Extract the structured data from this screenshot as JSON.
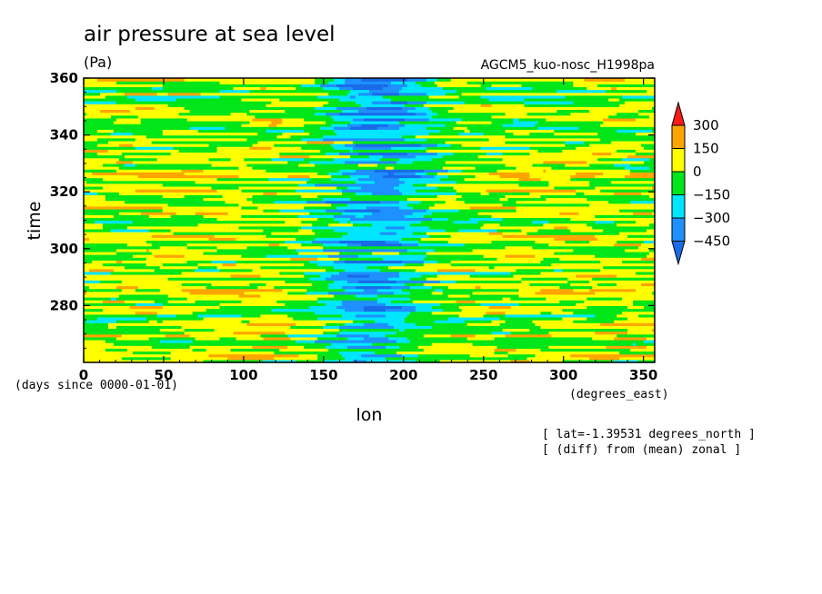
{
  "chart_data": {
    "type": "heatmap",
    "title": "air pressure at sea level",
    "units_label": "(Pa)",
    "run_name": "AGCM5_kuo-nosc_H1998pa",
    "xlabel": "lon",
    "ylabel": "time",
    "x_units_note": "(degrees_east)",
    "y_units_note": "(days since 0000-01-01)",
    "annotations": [
      "[ lat=-1.39531 degrees_north ]",
      "[ (diff) from (mean) zonal ]"
    ],
    "xlim": [
      0,
      357
    ],
    "ylim": [
      260,
      360
    ],
    "x_ticks": [
      0,
      50,
      100,
      150,
      200,
      250,
      300,
      350
    ],
    "y_ticks": [
      280,
      300,
      320,
      340,
      360
    ],
    "colorbar": {
      "levels": [
        -450,
        -300,
        -150,
        0,
        150,
        300
      ],
      "level_labels": [
        "300",
        "150",
        "0",
        "−150",
        "−300",
        "−450"
      ],
      "colors": {
        "below_-450": "#1a6be8",
        "-450_to_-300": "#1e90ff",
        "-300_to_-150": "#00e6ff",
        "-150_to_0": "#00e619",
        "0_to_150": "#ffff00",
        "150_to_300": "#ffa500",
        "above_300": "#ff1a1a"
      }
    },
    "field_description_values": {
      "background_anomaly_range": [
        -150,
        150
      ],
      "negative_band_center_lon": 180,
      "negative_band_width_lon": 70,
      "negative_band_minimum": -450
    }
  }
}
